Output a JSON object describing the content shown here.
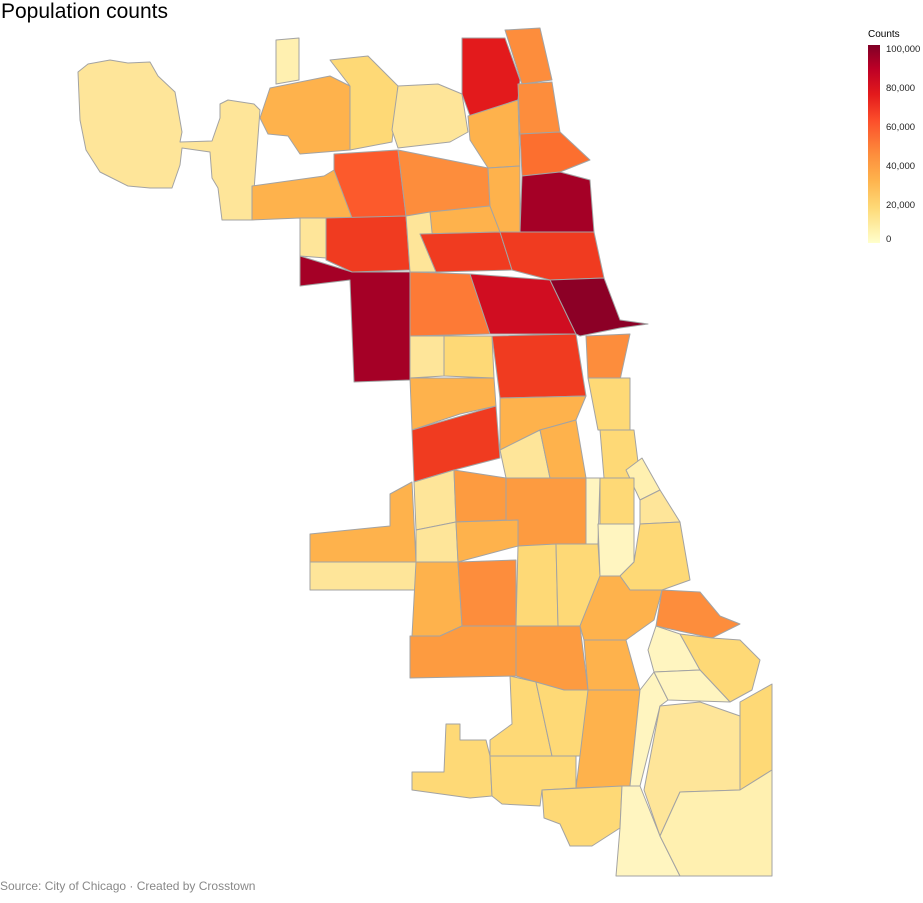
{
  "title": "Population counts",
  "source": "Source: City of Chicago · Created by Crosstown",
  "legend": {
    "title": "Counts",
    "ticks": [
      "100,000",
      "80,000",
      "60,000",
      "40,000",
      "20,000",
      "0"
    ],
    "colors": [
      "#ffffcc",
      "#fed976",
      "#feb24c",
      "#fd8d3c",
      "#fc4e2a",
      "#e31a1c",
      "#bd0026",
      "#800026"
    ]
  },
  "chart_data": {
    "type": "choropleth",
    "metric": "Counts",
    "range": [
      0,
      100000
    ],
    "region_values": [
      {
        "region": "far-north-lake",
        "value": 55000
      },
      {
        "region": "rogers-park-west",
        "value": 75000
      },
      {
        "region": "north-lakefront-1",
        "value": 52000
      },
      {
        "region": "north-lakefront-2",
        "value": 58000
      },
      {
        "region": "north-lakefront-3",
        "value": 100000
      },
      {
        "region": "north-lakefront-4",
        "value": 68000
      },
      {
        "region": "near-north",
        "value": 105000
      },
      {
        "region": "west-town",
        "value": 90000
      },
      {
        "region": "austin",
        "value": 98000
      },
      {
        "region": "north-center-west",
        "value": 68000
      },
      {
        "region": "logan-square",
        "value": 70000
      },
      {
        "region": "portage-park",
        "value": 62000
      },
      {
        "region": "irving-park",
        "value": 50000
      },
      {
        "region": "lower-west-side",
        "value": 70000
      },
      {
        "region": "south-lawndale",
        "value": 75000
      },
      {
        "region": "south-lakefront",
        "value": 55000
      },
      {
        "region": "far-northwest",
        "value": 10000
      },
      {
        "region": "norwood-park",
        "value": 40000
      },
      {
        "region": "dunning",
        "value": 42000
      }
    ]
  }
}
